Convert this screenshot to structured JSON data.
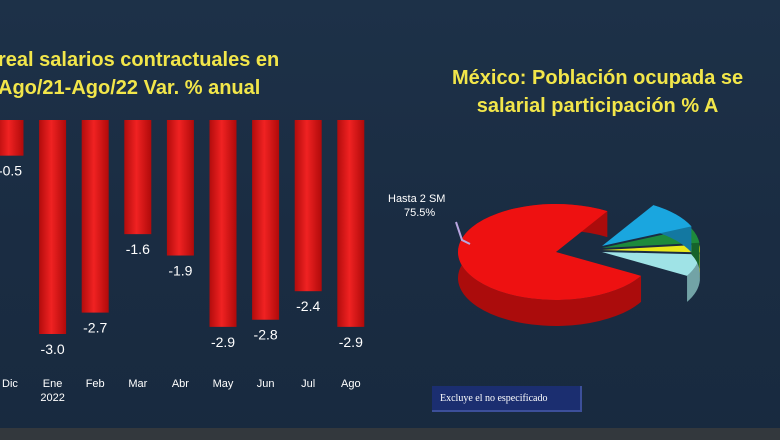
{
  "chart_data": [
    {
      "type": "bar",
      "title_lines": [
        "real salarios contractuales en",
        "Ago/21-Ago/22 Var. % anual"
      ],
      "categories": [
        "Dic",
        "Ene",
        "Feb",
        "Mar",
        "Abr",
        "May",
        "Jun",
        "Jul",
        "Ago"
      ],
      "sublabels": [
        "",
        "2022",
        "",
        "",
        "",
        "",
        "",
        "",
        ""
      ],
      "values": [
        -0.5,
        -3.0,
        -2.7,
        -1.6,
        -1.9,
        -2.9,
        -2.8,
        -2.4,
        -2.9
      ],
      "value_labels": [
        "-0.5",
        "-3.0",
        "-2.7",
        "-1.6",
        "-1.9",
        "-2.9",
        "-2.8",
        "-2.4",
        "-2.9"
      ],
      "ylim": [
        -3.0,
        0
      ],
      "bar_color": "#e01818"
    },
    {
      "type": "pie",
      "title_lines": [
        "México: Población ocupada se",
        "salarial  participación % A"
      ],
      "slices": [
        {
          "label": "Hasta 2 SM",
          "value_label": "75.5%",
          "value": 75.5,
          "color": "#ee1111"
        },
        {
          "label": "",
          "value": 9.5,
          "color": "#1aa6df"
        },
        {
          "label": "",
          "value": 5.0,
          "color": "#1e8a3c"
        },
        {
          "label": "",
          "value": 2.5,
          "color": "#e8e81a"
        },
        {
          "label": "",
          "value": 7.5,
          "color": "#9fe3e6"
        }
      ]
    }
  ],
  "note": "Excluye el no especificado"
}
